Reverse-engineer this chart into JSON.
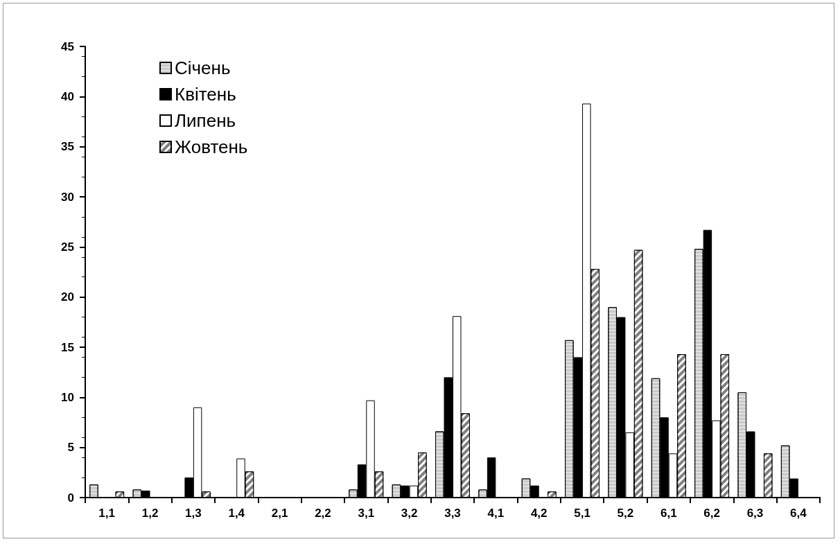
{
  "chart_data": {
    "type": "bar",
    "categories": [
      "1,1",
      "1,2",
      "1,3",
      "1,4",
      "2,1",
      "2,2",
      "3,1",
      "3,2",
      "3,3",
      "4,1",
      "4,2",
      "5,1",
      "5,2",
      "6,1",
      "6,2",
      "6,3",
      "6,4"
    ],
    "series": [
      {
        "name": "Січень",
        "color": "#c8c8c8",
        "values": [
          1.3,
          0.8,
          0,
          0,
          0,
          0,
          0.8,
          1.3,
          6.6,
          0.8,
          1.9,
          15.7,
          19.0,
          11.9,
          24.8,
          10.5,
          5.2
        ]
      },
      {
        "name": "Квітень",
        "color": "#000000",
        "values": [
          0,
          0.7,
          2.0,
          0,
          0,
          0,
          3.3,
          1.2,
          12.0,
          4.0,
          1.2,
          14.0,
          18.0,
          8.0,
          26.7,
          6.6,
          1.9
        ]
      },
      {
        "name": "Липень",
        "color": "#ffffff",
        "values": [
          0,
          0,
          9.0,
          3.9,
          0,
          0,
          9.7,
          1.2,
          18.1,
          0,
          0,
          39.3,
          6.5,
          4.4,
          7.7,
          0,
          0
        ]
      },
      {
        "name": "Жовтень",
        "color": "#808080",
        "values": [
          0.6,
          0,
          0.6,
          2.6,
          0,
          0,
          2.6,
          4.5,
          8.4,
          0,
          0.6,
          22.8,
          24.7,
          14.3,
          14.3,
          4.4,
          0
        ]
      }
    ],
    "ylim": [
      0,
      45
    ],
    "yticks": [
      0,
      5,
      10,
      15,
      20,
      25,
      30,
      35,
      40,
      45
    ],
    "grid": false,
    "legend": "top left"
  }
}
